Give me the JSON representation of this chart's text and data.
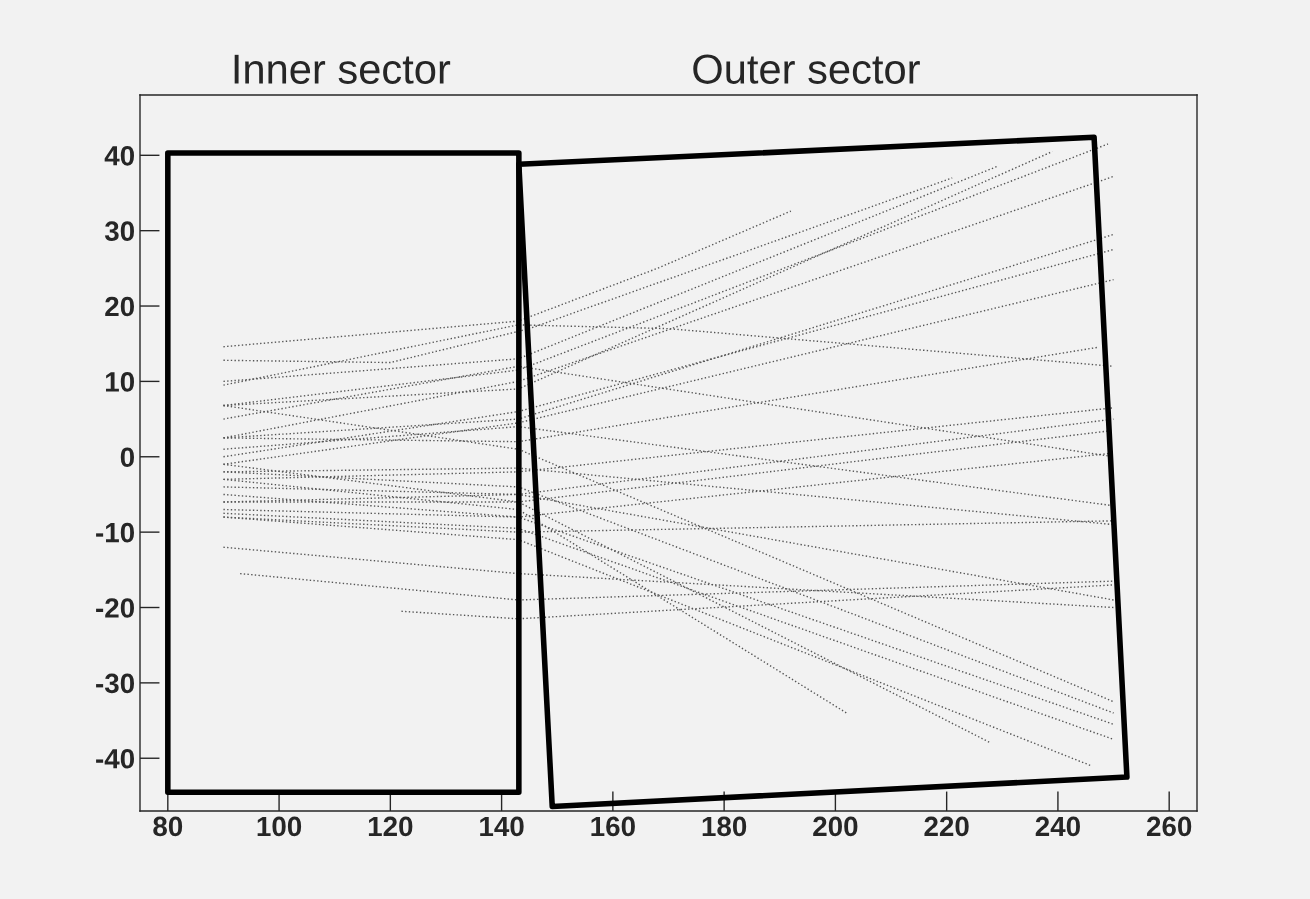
{
  "chart_data": {
    "type": "line",
    "xlim": [
      75,
      265
    ],
    "ylim": [
      -47,
      48
    ],
    "xticks": [
      80,
      100,
      120,
      140,
      160,
      180,
      200,
      220,
      240,
      260
    ],
    "yticks": [
      -40,
      -30,
      -20,
      -10,
      0,
      10,
      20,
      30,
      40
    ],
    "grid": false,
    "marker": "none",
    "line_style": "dotted",
    "annotations": [
      "Inner sector",
      "Outer sector"
    ],
    "series": [
      {
        "color": "#555555",
        "x": [
          90,
          143,
          168,
          192
        ],
        "values": [
          14.6,
          18,
          25,
          32.6
        ]
      },
      {
        "color": "#555555",
        "x": [
          90,
          120,
          145,
          221
        ],
        "values": [
          12.8,
          12.5,
          17,
          37
        ]
      },
      {
        "color": "#555555",
        "x": [
          90,
          143,
          229
        ],
        "values": [
          10,
          13,
          38.5
        ]
      },
      {
        "color": "#555555",
        "x": [
          90,
          143,
          249
        ],
        "values": [
          6.8,
          11.5,
          41.5
        ]
      },
      {
        "color": "#555555",
        "x": [
          90,
          143,
          250
        ],
        "values": [
          2.5,
          10,
          37.2
        ]
      },
      {
        "color": "#555555",
        "x": [
          90,
          143,
          239
        ],
        "values": [
          6.8,
          9,
          40.5
        ]
      },
      {
        "color": "#555555",
        "x": [
          90,
          143,
          250
        ],
        "values": [
          2.5,
          5,
          29.5
        ]
      },
      {
        "color": "#555555",
        "x": [
          90,
          143,
          250
        ],
        "values": [
          0,
          6,
          27.5
        ]
      },
      {
        "color": "#555555",
        "x": [
          90,
          143,
          250
        ],
        "values": [
          -1,
          4.5,
          23.5
        ]
      },
      {
        "color": "#555555",
        "x": [
          90,
          143,
          247
        ],
        "values": [
          2.5,
          2,
          14.5
        ]
      },
      {
        "color": "#555555",
        "x": [
          90,
          143,
          250
        ],
        "values": [
          -3,
          -2,
          6.5
        ]
      },
      {
        "color": "#555555",
        "x": [
          90,
          143,
          250
        ],
        "values": [
          -4,
          -5,
          5
        ]
      },
      {
        "color": "#555555",
        "x": [
          90,
          143,
          250
        ],
        "values": [
          -6,
          -6,
          3.5
        ]
      },
      {
        "color": "#555555",
        "x": [
          90,
          143,
          250
        ],
        "values": [
          -7,
          -8,
          0.5
        ]
      },
      {
        "color": "#555555",
        "x": [
          90,
          143,
          250
        ],
        "values": [
          -8,
          -10,
          -8.5
        ]
      },
      {
        "color": "#555555",
        "x": [
          90,
          143,
          250
        ],
        "values": [
          6.8,
          1,
          -32.5
        ]
      },
      {
        "color": "#555555",
        "x": [
          90,
          143,
          250
        ],
        "values": [
          -2,
          -4,
          -34
        ]
      },
      {
        "color": "#555555",
        "x": [
          90,
          143,
          250
        ],
        "values": [
          -5,
          -8,
          -35.5
        ]
      },
      {
        "color": "#555555",
        "x": [
          90,
          143,
          250
        ],
        "values": [
          -7.5,
          -9.5,
          -37.5
        ]
      },
      {
        "color": "#555555",
        "x": [
          90,
          143,
          246
        ],
        "values": [
          -8,
          -11,
          -41
        ]
      },
      {
        "color": "#555555",
        "x": [
          90,
          143,
          228
        ],
        "values": [
          -1,
          -6,
          -38
        ]
      },
      {
        "color": "#555555",
        "x": [
          90,
          143,
          202
        ],
        "values": [
          -3,
          -7,
          -34
        ]
      },
      {
        "color": "#555555",
        "x": [
          90,
          143,
          250
        ],
        "values": [
          -12,
          -15.5,
          -20
        ]
      },
      {
        "color": "#555555",
        "x": [
          93,
          143,
          250
        ],
        "values": [
          -15.5,
          -19,
          -16.5
        ]
      },
      {
        "color": "#555555",
        "x": [
          122,
          143,
          250
        ],
        "values": [
          -20.5,
          -21.5,
          -17
        ]
      },
      {
        "color": "#555555",
        "x": [
          90,
          143,
          170,
          250
        ],
        "values": [
          9.5,
          17.5,
          17,
          12
        ]
      },
      {
        "color": "#555555",
        "x": [
          90,
          143,
          250
        ],
        "values": [
          5,
          12,
          0
        ]
      },
      {
        "color": "#555555",
        "x": [
          90,
          143,
          250
        ],
        "values": [
          1,
          4,
          -6.5
        ]
      },
      {
        "color": "#555555",
        "x": [
          90,
          143,
          250
        ],
        "values": [
          -2,
          -1.5,
          -9
        ]
      },
      {
        "color": "#555555",
        "x": [
          90,
          143,
          250
        ],
        "values": [
          -6,
          -5,
          -19
        ]
      }
    ]
  }
}
